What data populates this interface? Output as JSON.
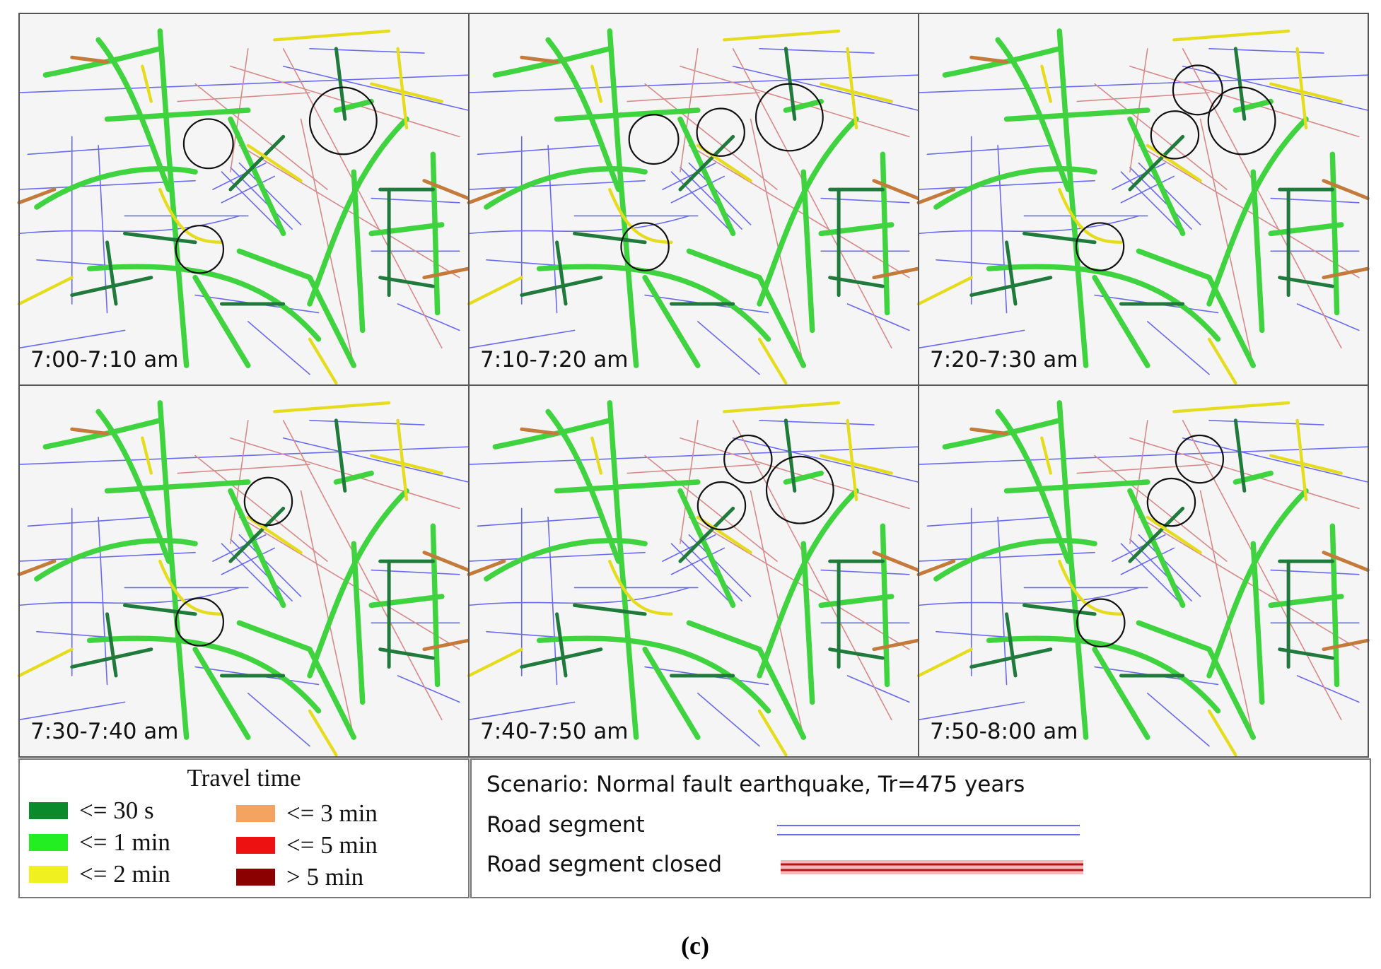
{
  "panels": [
    {
      "label": "7:00-7:10 am"
    },
    {
      "label": "7:10-7:20 am"
    },
    {
      "label": "7:20-7:30 am"
    },
    {
      "label": "7:30-7:40 am"
    },
    {
      "label": "7:40-7:50 am"
    },
    {
      "label": "7:50-8:00 am"
    }
  ],
  "legend": {
    "title": "Travel time",
    "items": [
      {
        "label": "<= 30 s",
        "color": "#0b8a2c"
      },
      {
        "label": "<= 1 min",
        "color": "#22ee22"
      },
      {
        "label": "<= 2 min",
        "color": "#f0f020"
      },
      {
        "label": "<= 3 min",
        "color": "#f4a460"
      },
      {
        "label": "<= 5 min",
        "color": "#ee1111"
      },
      {
        "label": "> 5 min",
        "color": "#8b0000"
      }
    ]
  },
  "scenario": "Scenario: Normal fault earthquake, Tr=475 years",
  "road_legend": [
    {
      "label": "Road segment"
    },
    {
      "label": "Road segment closed"
    }
  ],
  "caption": "(c)"
}
